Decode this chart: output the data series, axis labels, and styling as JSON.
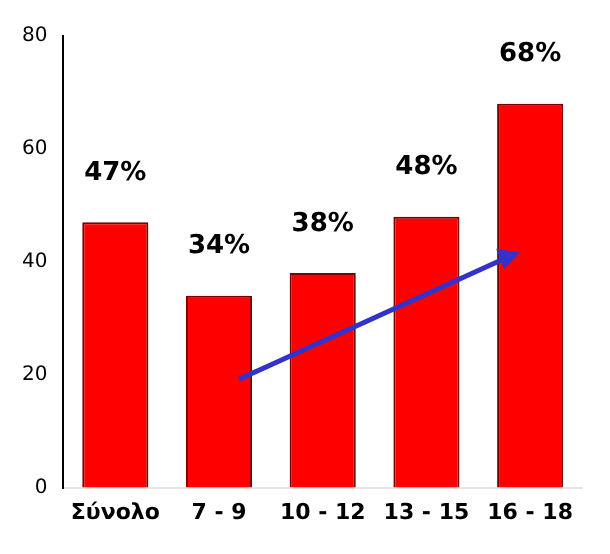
{
  "chart_data": {
    "type": "bar",
    "categories": [
      "Σύνολο",
      "7 - 9",
      "10 - 12",
      "13 - 15",
      "16 - 18"
    ],
    "values": [
      47,
      34,
      38,
      48,
      68
    ],
    "value_labels": [
      "47%",
      "34%",
      "38%",
      "48%",
      "68%"
    ],
    "color": "#ff0000",
    "ylim": [
      0,
      80
    ],
    "yticks": [
      0,
      20,
      40,
      60,
      80
    ],
    "grid": false,
    "legend": false
  }
}
